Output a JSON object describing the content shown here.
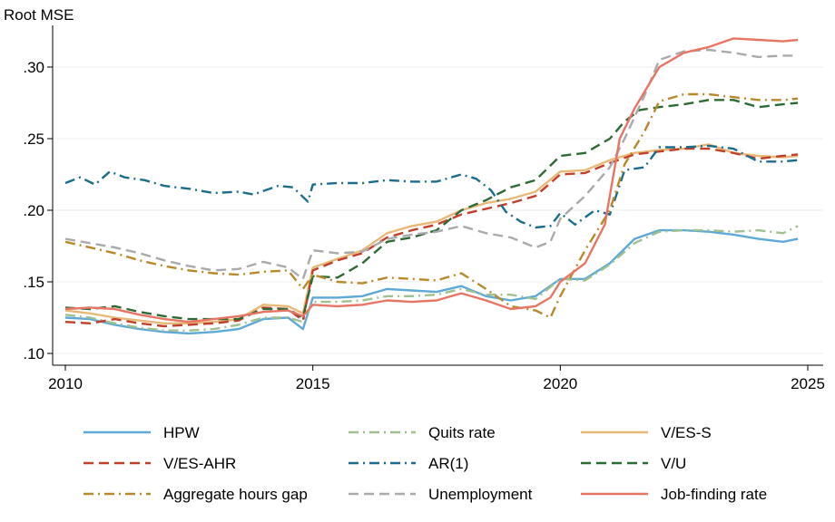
{
  "chart_data": {
    "type": "line",
    "title": "",
    "ylabel": "Root MSE",
    "xlabel": "",
    "xlim": [
      2010,
      2025.1
    ],
    "ylim": [
      0.095,
      0.33
    ],
    "xticks": [
      2010,
      2015,
      2020,
      2025
    ],
    "xtick_labels": [
      "2010",
      "2015",
      "2020",
      "2025"
    ],
    "yticks": [
      0.1,
      0.15,
      0.2,
      0.25,
      0.3
    ],
    "ytick_labels": [
      ".10",
      ".15",
      ".20",
      ".25",
      ".30"
    ],
    "grid": "horizontal",
    "legend_position": "bottom",
    "series": [
      {
        "name": "HPW",
        "color": "#5ea9d8",
        "dash": "solid",
        "x": [
          2010,
          2010.5,
          2011,
          2011.5,
          2012,
          2012.5,
          2013,
          2013.5,
          2014,
          2014.5,
          2014.8,
          2015,
          2015.5,
          2016,
          2016.5,
          2017,
          2017.5,
          2018,
          2018.5,
          2019,
          2019.5,
          2020,
          2020.5,
          2021,
          2021.5,
          2022,
          2022.5,
          2023,
          2023.5,
          2024,
          2024.5,
          2024.8
        ],
        "y": [
          0.125,
          0.124,
          0.12,
          0.117,
          0.115,
          0.114,
          0.115,
          0.117,
          0.124,
          0.125,
          0.117,
          0.139,
          0.139,
          0.14,
          0.145,
          0.144,
          0.143,
          0.147,
          0.14,
          0.137,
          0.14,
          0.152,
          0.152,
          0.163,
          0.18,
          0.186,
          0.186,
          0.185,
          0.183,
          0.18,
          0.178,
          0.18
        ]
      },
      {
        "name": "Quits rate",
        "color": "#9fc08f",
        "dash": "dashdot",
        "x": [
          2010,
          2010.5,
          2011,
          2011.5,
          2012,
          2012.5,
          2013,
          2013.5,
          2014,
          2014.5,
          2014.8,
          2015,
          2015.5,
          2016,
          2016.5,
          2017,
          2017.5,
          2018,
          2018.5,
          2019,
          2019.5,
          2020,
          2020.5,
          2021,
          2021.5,
          2022,
          2022.5,
          2023,
          2023.5,
          2024,
          2024.5,
          2024.8
        ],
        "y": [
          0.127,
          0.125,
          0.121,
          0.118,
          0.116,
          0.116,
          0.117,
          0.12,
          0.125,
          0.125,
          0.122,
          0.136,
          0.136,
          0.137,
          0.14,
          0.14,
          0.141,
          0.145,
          0.141,
          0.141,
          0.138,
          0.152,
          0.151,
          0.162,
          0.177,
          0.185,
          0.186,
          0.186,
          0.185,
          0.186,
          0.184,
          0.189
        ]
      },
      {
        "name": "V/ES-S",
        "color": "#e8b877",
        "dash": "solid",
        "x": [
          2010,
          2010.5,
          2011,
          2011.5,
          2012,
          2012.5,
          2013,
          2013.5,
          2014,
          2014.5,
          2014.8,
          2015,
          2015.5,
          2016,
          2016.5,
          2017,
          2017.5,
          2018,
          2018.5,
          2019,
          2019.5,
          2020,
          2020.5,
          2021,
          2021.5,
          2022,
          2022.5,
          2023,
          2023.5,
          2024,
          2024.5,
          2024.8
        ],
        "y": [
          0.13,
          0.128,
          0.125,
          0.123,
          0.121,
          0.121,
          0.122,
          0.124,
          0.134,
          0.133,
          0.128,
          0.16,
          0.166,
          0.172,
          0.184,
          0.189,
          0.192,
          0.2,
          0.205,
          0.208,
          0.213,
          0.227,
          0.228,
          0.235,
          0.24,
          0.242,
          0.243,
          0.246,
          0.24,
          0.238,
          0.237,
          0.238
        ]
      },
      {
        "name": "V/ES-AHR",
        "color": "#c1402b",
        "dash": "dash",
        "x": [
          2010,
          2010.5,
          2011,
          2011.5,
          2012,
          2012.5,
          2013,
          2013.5,
          2014,
          2014.5,
          2014.8,
          2015,
          2015.5,
          2016,
          2016.5,
          2017,
          2017.5,
          2018,
          2018.5,
          2019,
          2019.5,
          2020,
          2020.5,
          2021,
          2021.5,
          2022,
          2022.5,
          2023,
          2023.5,
          2024,
          2024.5,
          2024.8
        ],
        "y": [
          0.122,
          0.121,
          0.124,
          0.121,
          0.119,
          0.12,
          0.121,
          0.123,
          0.132,
          0.131,
          0.123,
          0.158,
          0.165,
          0.17,
          0.181,
          0.186,
          0.19,
          0.197,
          0.201,
          0.205,
          0.21,
          0.225,
          0.226,
          0.233,
          0.239,
          0.241,
          0.243,
          0.243,
          0.24,
          0.236,
          0.238,
          0.239
        ]
      },
      {
        "name": "AR(1)",
        "color": "#1c6c8c",
        "dash": "dashdot",
        "x": [
          2010,
          2010.3,
          2010.6,
          2010.9,
          2011.2,
          2011.6,
          2012,
          2012.5,
          2013,
          2013.5,
          2013.8,
          2014.3,
          2014.6,
          2014.9,
          2015,
          2015.5,
          2016,
          2016.5,
          2017,
          2017.5,
          2018,
          2018.3,
          2018.6,
          2018.9,
          2019.2,
          2019.5,
          2019.8,
          2020,
          2020.3,
          2020.7,
          2021,
          2021.3,
          2021.7,
          2022,
          2022.5,
          2023,
          2023.5,
          2024,
          2024.5,
          2024.8
        ],
        "y": [
          0.219,
          0.223,
          0.218,
          0.227,
          0.223,
          0.221,
          0.217,
          0.215,
          0.212,
          0.213,
          0.211,
          0.217,
          0.216,
          0.206,
          0.218,
          0.219,
          0.219,
          0.221,
          0.22,
          0.22,
          0.225,
          0.222,
          0.214,
          0.199,
          0.192,
          0.188,
          0.189,
          0.198,
          0.19,
          0.2,
          0.197,
          0.228,
          0.23,
          0.244,
          0.244,
          0.245,
          0.243,
          0.234,
          0.234,
          0.235
        ]
      },
      {
        "name": "V/U",
        "color": "#2e6b34",
        "dash": "dash",
        "x": [
          2010,
          2010.5,
          2011,
          2011.5,
          2012,
          2012.5,
          2013,
          2013.5,
          2014,
          2014.5,
          2014.8,
          2015,
          2015.5,
          2016,
          2016.5,
          2017,
          2017.5,
          2018,
          2018.5,
          2019,
          2019.5,
          2020,
          2020.5,
          2021,
          2021.3,
          2021.6,
          2022,
          2022.5,
          2023,
          2023.5,
          2024,
          2024.5,
          2024.8
        ],
        "y": [
          0.132,
          0.131,
          0.133,
          0.129,
          0.126,
          0.124,
          0.124,
          0.124,
          0.131,
          0.131,
          0.125,
          0.154,
          0.153,
          0.163,
          0.178,
          0.181,
          0.186,
          0.2,
          0.207,
          0.216,
          0.221,
          0.238,
          0.24,
          0.25,
          0.262,
          0.27,
          0.272,
          0.274,
          0.277,
          0.277,
          0.272,
          0.274,
          0.275
        ]
      },
      {
        "name": "Aggregate hours gap",
        "color": "#b8892a",
        "dash": "dashdot",
        "x": [
          2010,
          2010.5,
          2011,
          2011.5,
          2012,
          2012.5,
          2013,
          2013.5,
          2014,
          2014.5,
          2014.8,
          2015,
          2015.5,
          2016,
          2016.5,
          2017,
          2017.5,
          2018,
          2018.5,
          2019,
          2019.5,
          2019.8,
          2020,
          2020.5,
          2021,
          2021.3,
          2021.7,
          2022,
          2022.5,
          2023,
          2023.5,
          2024,
          2024.5,
          2024.8
        ],
        "y": [
          0.178,
          0.174,
          0.17,
          0.165,
          0.161,
          0.158,
          0.156,
          0.155,
          0.157,
          0.158,
          0.145,
          0.155,
          0.15,
          0.149,
          0.153,
          0.152,
          0.151,
          0.156,
          0.145,
          0.133,
          0.13,
          0.125,
          0.14,
          0.172,
          0.2,
          0.232,
          0.255,
          0.276,
          0.281,
          0.281,
          0.279,
          0.277,
          0.277,
          0.278
        ]
      },
      {
        "name": "Unemployment",
        "color": "#a9a9ae",
        "dash": "dash",
        "x": [
          2010,
          2010.5,
          2011,
          2011.5,
          2012,
          2012.5,
          2013,
          2013.5,
          2014,
          2014.5,
          2014.8,
          2015,
          2015.5,
          2016,
          2016.5,
          2017,
          2017.5,
          2018,
          2018.5,
          2019,
          2019.5,
          2019.8,
          2020,
          2020.5,
          2021,
          2021.3,
          2021.7,
          2022,
          2022.5,
          2023,
          2023.5,
          2024,
          2024.5,
          2024.8
        ],
        "y": [
          0.18,
          0.177,
          0.174,
          0.17,
          0.165,
          0.161,
          0.158,
          0.159,
          0.164,
          0.16,
          0.152,
          0.172,
          0.17,
          0.171,
          0.18,
          0.183,
          0.185,
          0.189,
          0.184,
          0.181,
          0.174,
          0.178,
          0.194,
          0.21,
          0.23,
          0.25,
          0.28,
          0.305,
          0.311,
          0.312,
          0.31,
          0.307,
          0.308,
          0.308
        ]
      },
      {
        "name": "Job-finding rate",
        "color": "#e87564",
        "dash": "solid",
        "x": [
          2010,
          2010.5,
          2011,
          2011.5,
          2012,
          2012.5,
          2013,
          2013.5,
          2014,
          2014.5,
          2014.8,
          2015,
          2015.5,
          2016,
          2016.5,
          2017,
          2017.5,
          2018,
          2018.5,
          2019,
          2019.5,
          2019.8,
          2020,
          2020.5,
          2020.9,
          2021.2,
          2021.5,
          2022,
          2022.5,
          2023,
          2023.5,
          2024,
          2024.5,
          2024.8
        ],
        "y": [
          0.131,
          0.132,
          0.131,
          0.127,
          0.124,
          0.122,
          0.124,
          0.126,
          0.129,
          0.13,
          0.126,
          0.134,
          0.133,
          0.134,
          0.137,
          0.136,
          0.137,
          0.142,
          0.137,
          0.131,
          0.133,
          0.139,
          0.15,
          0.163,
          0.19,
          0.25,
          0.271,
          0.3,
          0.31,
          0.314,
          0.32,
          0.319,
          0.318,
          0.319
        ]
      }
    ]
  }
}
